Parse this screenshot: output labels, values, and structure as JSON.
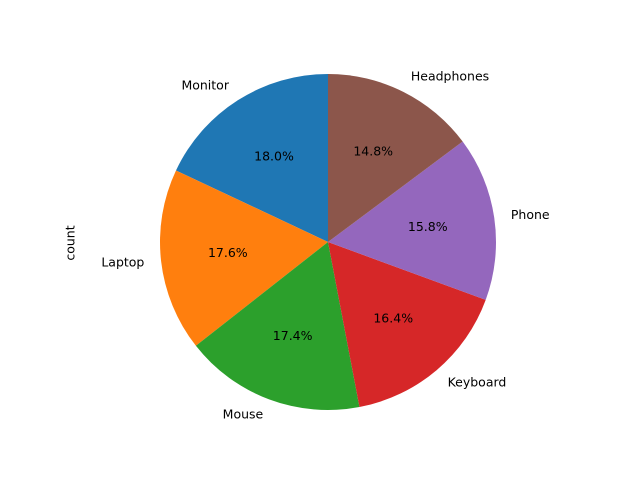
{
  "chart_data": {
    "type": "pie",
    "ylabel": "count",
    "categories": [
      "Monitor",
      "Laptop",
      "Mouse",
      "Keyboard",
      "Phone",
      "Headphones"
    ],
    "values": [
      18.0,
      17.6,
      17.4,
      16.4,
      15.8,
      14.8
    ],
    "value_labels": [
      "18.0%",
      "17.6%",
      "17.4%",
      "16.4%",
      "15.8%",
      "14.8%"
    ],
    "colors": [
      "#1f77b4",
      "#ff7f0e",
      "#2ca02c",
      "#d62728",
      "#9467bd",
      "#8c564b"
    ],
    "start_angle_deg": 90,
    "direction": "counterclockwise",
    "legend": "none"
  }
}
